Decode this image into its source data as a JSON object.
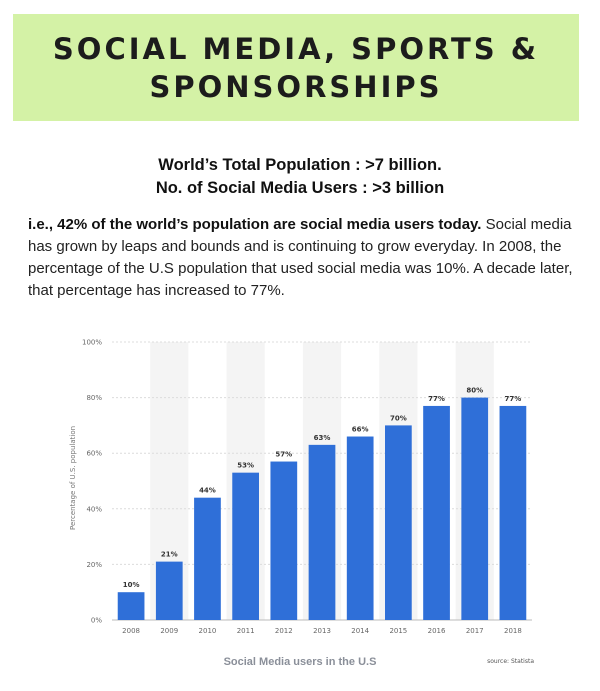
{
  "banner": {
    "line1": "SOCIAL MEDIA, SPORTS &",
    "line2": "SPONSORSHIPS"
  },
  "stats": {
    "population": "World’s Total Population : >7 billion.",
    "users": "No. of Social Media Users : >3 billion"
  },
  "paragraph": {
    "bold": "i.e., 42% of the world’s population are social media users today.",
    "rest": " Social media has grown by leaps and bounds and is continuing to grow everyday.  In 2008, the percentage of the U.S population that used social media was 10%. A decade later, that percentage has increased to 77%."
  },
  "chart_data": {
    "type": "bar",
    "title": "Social Media users in the U.S",
    "ylabel": "Percentage of U.S. population",
    "xlabel": "",
    "source": "source: Statista",
    "categories": [
      "2008",
      "2009",
      "2010",
      "2011",
      "2012",
      "2013",
      "2014",
      "2015",
      "2016",
      "2017",
      "2018"
    ],
    "values": [
      10,
      21,
      44,
      53,
      57,
      63,
      66,
      70,
      77,
      80,
      77
    ],
    "value_labels": [
      "10%",
      "21%",
      "44%",
      "53%",
      "57%",
      "63%",
      "66%",
      "70%",
      "77%",
      "80%",
      "77%"
    ],
    "y_ticks": [
      0,
      20,
      40,
      60,
      80,
      100
    ],
    "y_tick_labels": [
      "0%",
      "20%",
      "40%",
      "60%",
      "80%",
      "100%"
    ],
    "ylim": [
      0,
      100
    ],
    "grid": true,
    "bar_color": "#2f6fd8"
  }
}
